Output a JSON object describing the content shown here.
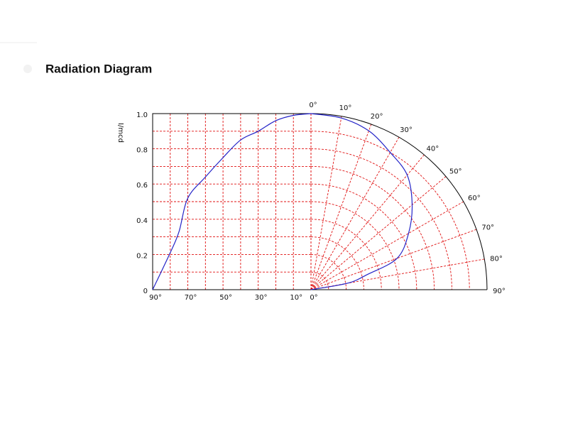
{
  "chart_data": {
    "type": "radiation",
    "title": "Radiation Diagram",
    "ylabel": "I/mcd",
    "x": [
      0,
      10,
      20,
      30,
      40,
      50,
      60,
      70,
      75,
      80,
      90
    ],
    "values": [
      1.0,
      0.99,
      0.96,
      0.9,
      0.85,
      0.75,
      0.64,
      0.52,
      0.33,
      0.21,
      0
    ],
    "color": "#2424c8",
    "grid_color": "#e01010",
    "ylim": [
      0,
      1
    ],
    "yticks": [
      0,
      0.2,
      0.4,
      0.6,
      0.8,
      {
        "value": 1,
        "label": "1.0"
      }
    ],
    "yminor": [
      0.1,
      0.3,
      0.5,
      0.7,
      0.9
    ],
    "xlim": [
      0,
      90
    ],
    "xticks": [
      {
        "value": 90,
        "label": "90°"
      },
      {
        "value": 70,
        "label": "70°"
      },
      {
        "value": 50,
        "label": "50°"
      },
      {
        "value": 30,
        "label": "30°"
      },
      {
        "value": 10,
        "label": "10°"
      },
      {
        "value": 0,
        "label": "0°"
      }
    ],
    "xminor": [
      20,
      40,
      60,
      80
    ],
    "angle_ticks": [
      {
        "value": 0,
        "label": "0°"
      },
      {
        "value": 10,
        "label": "10°"
      },
      {
        "value": 20,
        "label": "20°"
      },
      {
        "value": 30,
        "label": "30°"
      },
      {
        "value": 40,
        "label": "40°"
      },
      {
        "value": 50,
        "label": "50°"
      },
      {
        "value": 60,
        "label": "60°"
      },
      {
        "value": 70,
        "label": "70°"
      },
      {
        "value": 80,
        "label": "80°"
      },
      {
        "value": 90,
        "label": "90°"
      }
    ],
    "grid": true
  }
}
